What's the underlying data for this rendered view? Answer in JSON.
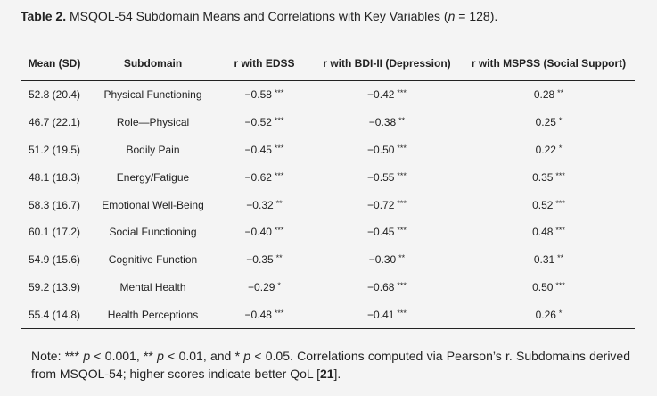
{
  "caption": {
    "label": "Table 2.",
    "text": "MSQOL-54 Subdomain Means and Correlations with Key Variables (",
    "n_symbol": "n",
    "n_rest": " = 128)."
  },
  "table": {
    "headers": [
      "Mean (SD)",
      "Subdomain",
      "r with EDSS",
      "r with BDI-II (Depression)",
      "r with MSPSS (Social Support)"
    ],
    "rows": [
      {
        "mean": "52.8 (20.4)",
        "subdomain": "Physical Functioning",
        "edss": "−0.58",
        "edss_sig": "***",
        "bdi": "−0.42",
        "bdi_sig": "***",
        "mspss": "0.28",
        "mspss_sig": "**"
      },
      {
        "mean": "46.7 (22.1)",
        "subdomain": "Role—Physical",
        "edss": "−0.52",
        "edss_sig": "***",
        "bdi": "−0.38",
        "bdi_sig": "**",
        "mspss": "0.25",
        "mspss_sig": "*"
      },
      {
        "mean": "51.2 (19.5)",
        "subdomain": "Bodily Pain",
        "edss": "−0.45",
        "edss_sig": "***",
        "bdi": "−0.50",
        "bdi_sig": "***",
        "mspss": "0.22",
        "mspss_sig": "*"
      },
      {
        "mean": "48.1 (18.3)",
        "subdomain": "Energy/Fatigue",
        "edss": "−0.62",
        "edss_sig": "***",
        "bdi": "−0.55",
        "bdi_sig": "***",
        "mspss": "0.35",
        "mspss_sig": "***"
      },
      {
        "mean": "58.3 (16.7)",
        "subdomain": "Emotional Well-Being",
        "edss": "−0.32",
        "edss_sig": "**",
        "bdi": "−0.72",
        "bdi_sig": "***",
        "mspss": "0.52",
        "mspss_sig": "***"
      },
      {
        "mean": "60.1 (17.2)",
        "subdomain": "Social Functioning",
        "edss": "−0.40",
        "edss_sig": "***",
        "bdi": "−0.45",
        "bdi_sig": "***",
        "mspss": "0.48",
        "mspss_sig": "***"
      },
      {
        "mean": "54.9 (15.6)",
        "subdomain": "Cognitive Function",
        "edss": "−0.35",
        "edss_sig": "**",
        "bdi": "−0.30",
        "bdi_sig": "**",
        "mspss": "0.31",
        "mspss_sig": "**"
      },
      {
        "mean": "59.2 (13.9)",
        "subdomain": "Mental Health",
        "edss": "−0.29",
        "edss_sig": "*",
        "bdi": "−0.68",
        "bdi_sig": "***",
        "mspss": "0.50",
        "mspss_sig": "***"
      },
      {
        "mean": "55.4 (14.8)",
        "subdomain": "Health Perceptions",
        "edss": "−0.48",
        "edss_sig": "***",
        "bdi": "−0.41",
        "bdi_sig": "***",
        "mspss": "0.26",
        "mspss_sig": "*"
      }
    ]
  },
  "note": {
    "prefix": "Note: *** ",
    "p": "p",
    "t1": " < 0.001, ** ",
    "t2": " < 0.01, and * ",
    "t3": " < 0.05. Correlations computed via Pearson’s r. Subdomains derived from MSQOL-54; higher scores indicate better QoL [",
    "ref": "21",
    "end": "]."
  }
}
